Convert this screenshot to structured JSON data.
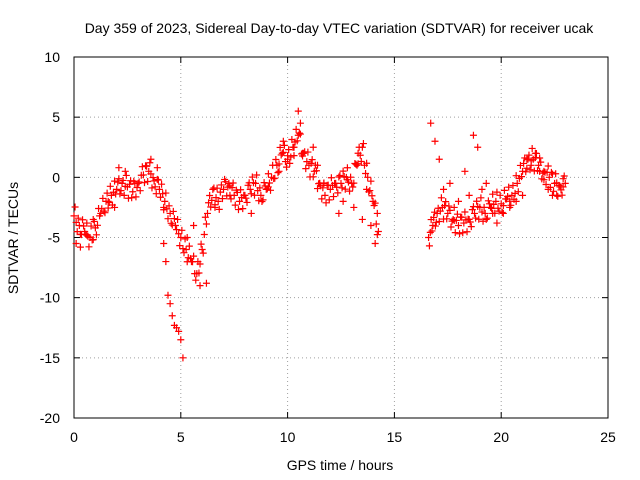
{
  "chart_data": {
    "type": "scatter",
    "title": "Day 359 of 2023, Sidereal Day-to-day VTEC variation (SDTVAR) for receiver ucak",
    "xlabel": "GPS time / hours",
    "ylabel": "SDTVAR / TECUs",
    "xlim": [
      0,
      25
    ],
    "ylim": [
      -20,
      10
    ],
    "x_ticks": [
      "0",
      "5",
      "10",
      "15",
      "20",
      "25"
    ],
    "y_ticks": [
      "10",
      "5",
      "0",
      "-5",
      "-10",
      "-15",
      "-20"
    ],
    "grid": true,
    "marker": "+",
    "series": [
      {
        "name": "SDTVAR",
        "color": "#ff0000",
        "trace_x": [
          0.0,
          0.25,
          0.5,
          0.75,
          1.0,
          1.25,
          1.5,
          1.75,
          2.0,
          2.25,
          2.5,
          2.75,
          3.0,
          3.25,
          3.5,
          3.75,
          4.0,
          4.25,
          4.5,
          4.75,
          5.0,
          5.25,
          5.5,
          5.75,
          6.0,
          6.25,
          6.5,
          6.75,
          7.0,
          7.25,
          7.5,
          7.75,
          8.0,
          8.25,
          8.5,
          8.75,
          9.0,
          9.25,
          9.5,
          9.75,
          10.0,
          10.25,
          10.5,
          10.75,
          11.0,
          11.25,
          11.5,
          11.75,
          12.0,
          12.25,
          12.5,
          12.75,
          13.0,
          13.25,
          13.5,
          13.75,
          14.0,
          14.25,
          16.6,
          16.8,
          17.0,
          17.25,
          17.5,
          17.75,
          18.0,
          18.25,
          18.5,
          18.75,
          19.0,
          19.25,
          19.5,
          19.75,
          20.0,
          20.25,
          20.5,
          20.75,
          21.0,
          21.25,
          21.5,
          21.75,
          22.0,
          22.25,
          22.5,
          22.75,
          23.0
        ],
        "trace_y": [
          -3.2,
          -4.0,
          -4.5,
          -5.0,
          -4.2,
          -3.0,
          -2.0,
          -1.5,
          -1.0,
          -0.5,
          -0.8,
          -1.2,
          -0.5,
          0.2,
          0.5,
          -0.3,
          -1.0,
          -2.0,
          -3.0,
          -4.0,
          -5.0,
          -6.0,
          -7.0,
          -8.0,
          -6.0,
          -3.0,
          -1.0,
          -2.0,
          -1.0,
          -0.5,
          -1.5,
          -2.0,
          -1.5,
          -1.0,
          -0.5,
          -1.5,
          -1.0,
          0.0,
          1.0,
          2.0,
          1.5,
          2.5,
          3.5,
          2.0,
          1.0,
          0.5,
          -0.5,
          -1.5,
          -1.0,
          -0.5,
          -0.5,
          0.0,
          -0.5,
          1.0,
          2.5,
          0.0,
          -2.0,
          -4.5,
          -5.0,
          -4.0,
          -3.0,
          -2.5,
          -3.0,
          -3.5,
          -4.0,
          -3.8,
          -3.5,
          -3.0,
          -2.5,
          -3.0,
          -2.5,
          -2.0,
          -2.2,
          -1.8,
          -1.5,
          -0.5,
          0.5,
          1.5,
          1.5,
          1.0,
          0.5,
          0.0,
          -0.5,
          -0.8,
          -0.5
        ],
        "cluster_x": [
          0.1,
          0.3,
          0.6,
          0.9,
          1.6,
          1.9,
          2.1,
          2.4,
          3.6,
          3.9,
          4.2,
          4.2,
          4.3,
          4.4,
          4.5,
          4.6,
          4.7,
          4.8,
          4.9,
          5.0,
          5.1,
          5.3,
          5.6,
          5.9,
          6.2,
          6.6,
          7.3,
          8.3,
          9.1,
          9.6,
          9.8,
          10.0,
          10.3,
          10.5,
          10.6,
          10.7,
          11.2,
          11.4,
          11.5,
          11.7,
          12.4,
          12.6,
          12.8,
          13.1,
          13.3,
          13.5,
          13.7,
          13.9,
          14.1,
          14.2,
          16.7,
          16.9,
          17.1,
          17.3,
          17.6,
          17.8,
          18.0,
          18.3,
          18.5,
          18.7,
          18.9,
          19.1,
          19.3,
          19.6,
          19.8,
          20.1,
          20.4,
          20.7,
          21.0,
          21.2,
          21.4,
          21.6,
          21.8,
          22.0,
          22.2,
          22.4,
          22.6,
          22.8,
          22.9
        ],
        "cluster_y": [
          -5.5,
          -5.8,
          -4.8,
          -3.5,
          -2.0,
          -2.5,
          0.8,
          0.5,
          1.5,
          0.8,
          -2.5,
          -5.5,
          -7.0,
          -9.8,
          -10.5,
          -11.5,
          -12.3,
          -12.5,
          -12.8,
          -13.5,
          -15.0,
          -5.0,
          -4.0,
          -9.0,
          -8.8,
          -2.5,
          -1.5,
          -3.0,
          -0.8,
          0.5,
          3.0,
          1.8,
          2.5,
          5.5,
          4.5,
          2.0,
          2.5,
          1.0,
          -0.5,
          -0.5,
          -3.0,
          -2.0,
          -0.2,
          -2.5,
          2.0,
          -3.5,
          -1.0,
          -4.0,
          -5.5,
          -3.0,
          4.5,
          3.0,
          1.5,
          -1.0,
          -0.5,
          -2.5,
          -2.0,
          0.5,
          -1.5,
          3.5,
          2.5,
          -1.0,
          -0.5,
          -3.0,
          -3.8,
          -3.0,
          -2.5,
          -2.0,
          -1.5,
          1.5,
          1.0,
          2.0,
          0.5,
          -0.2,
          -1.0,
          -1.5,
          -1.5,
          -0.8,
          -0.8
        ]
      }
    ]
  }
}
